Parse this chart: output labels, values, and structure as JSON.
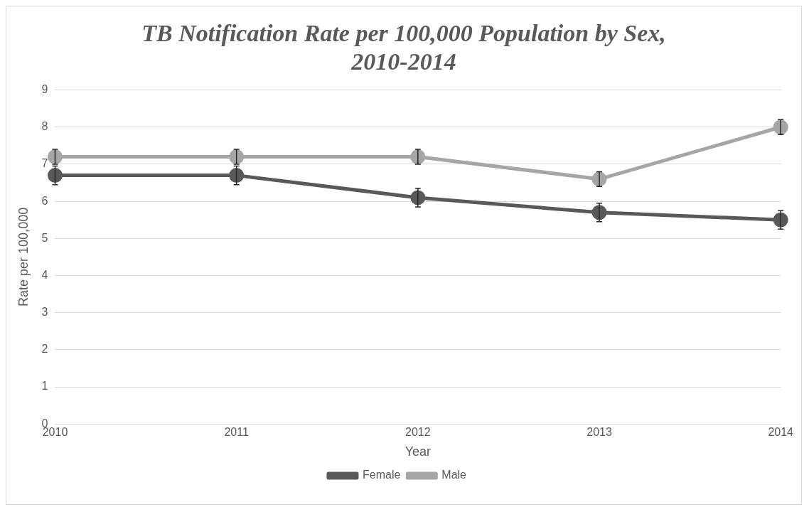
{
  "chart_data": {
    "type": "line",
    "title": "TB Notification Rate per 100,000 Population by Sex, 2010-2014",
    "xlabel": "Year",
    "ylabel": "Rate per 100,000",
    "categories": [
      "2010",
      "2011",
      "2012",
      "2013",
      "2014"
    ],
    "series": [
      {
        "name": "Female",
        "color": "#595959",
        "values": [
          6.7,
          6.7,
          6.1,
          5.7,
          5.5
        ],
        "errors": [
          0.25,
          0.25,
          0.25,
          0.25,
          0.25
        ]
      },
      {
        "name": "Male",
        "color": "#a6a6a6",
        "values": [
          7.2,
          7.2,
          7.2,
          6.6,
          8.0
        ],
        "errors": [
          0.2,
          0.2,
          0.2,
          0.2,
          0.2
        ]
      }
    ],
    "ylim": [
      0,
      9
    ],
    "yticks": [
      0,
      1,
      2,
      3,
      4,
      5,
      6,
      7,
      8,
      9
    ],
    "grid": "y",
    "legend": "bottom",
    "marker": "circle",
    "line_style": "solid"
  }
}
